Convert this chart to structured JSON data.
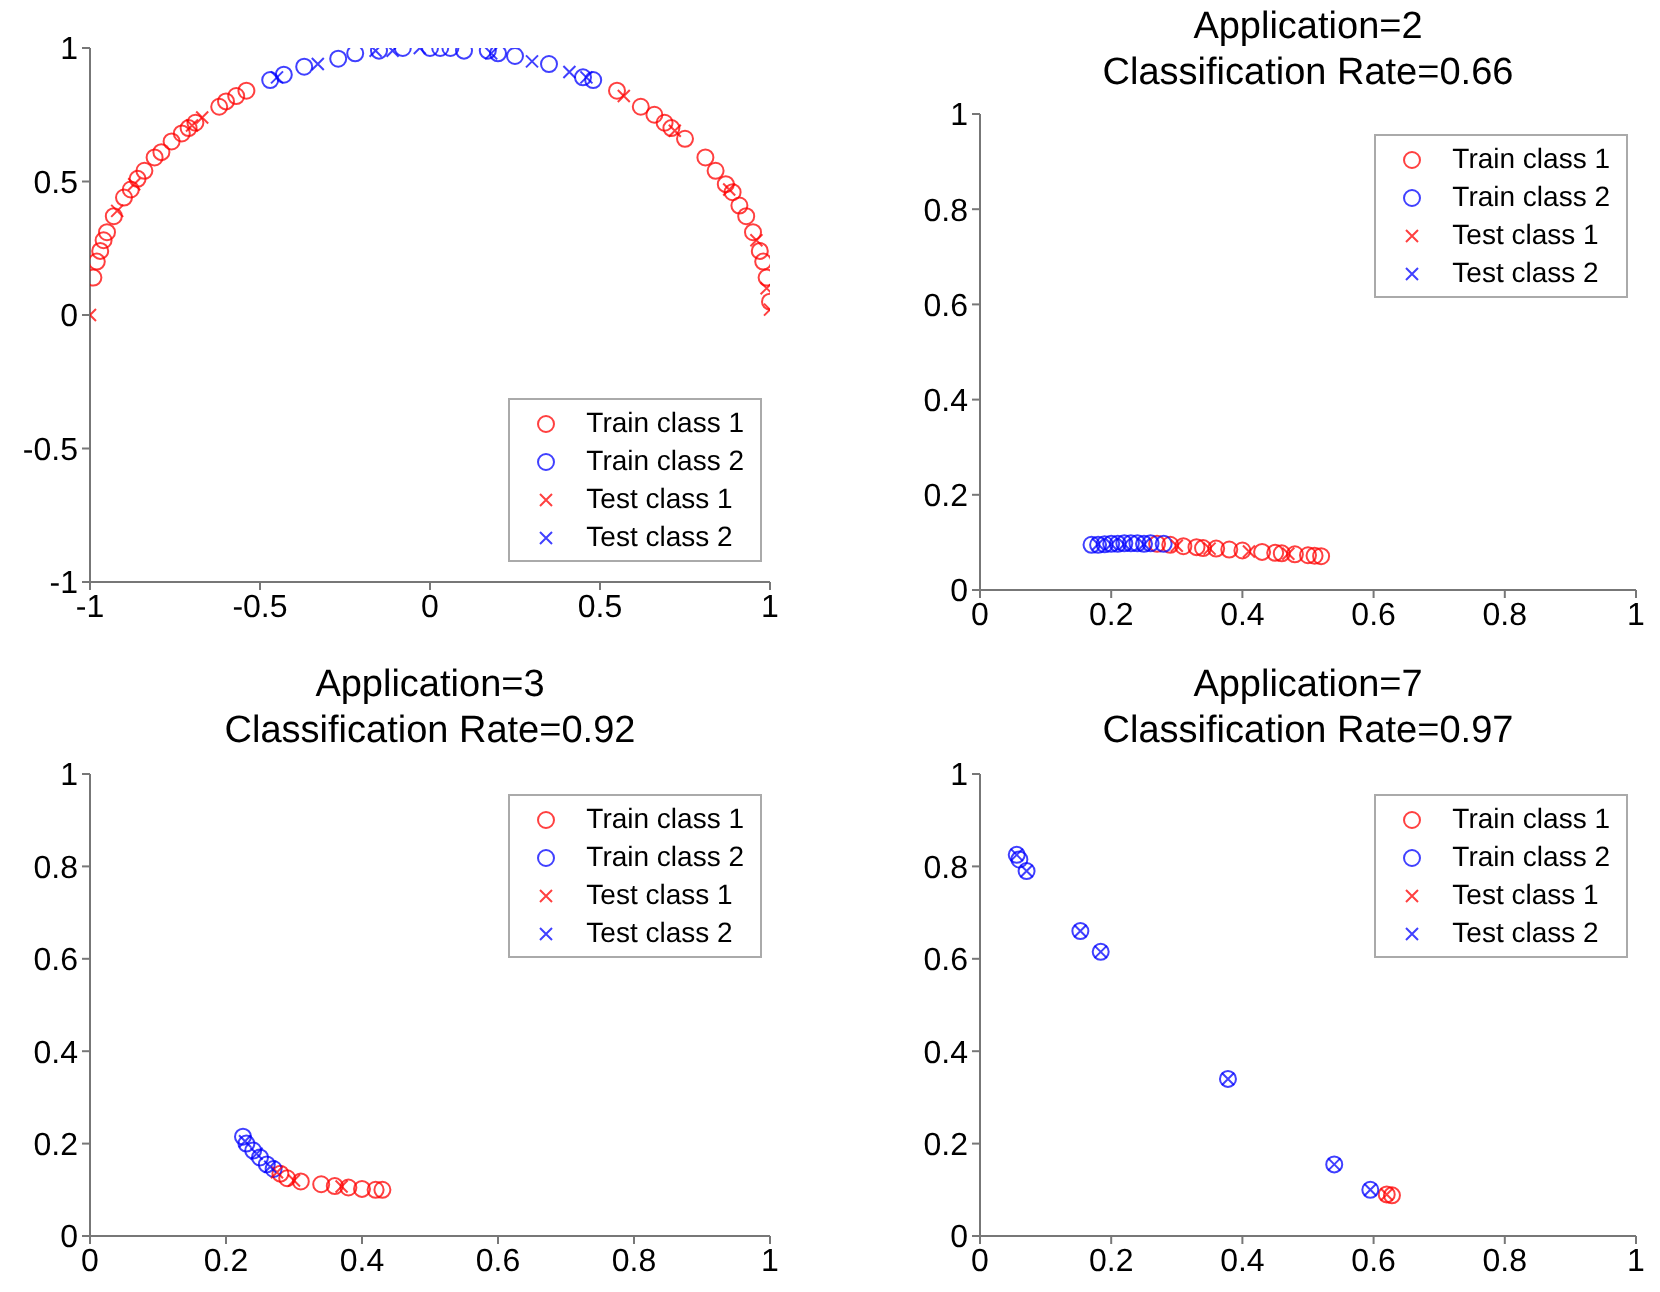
{
  "chart_data": [
    {
      "type": "scatter",
      "legend": "bottom right",
      "xlim": [
        -1,
        1
      ],
      "ylim": [
        -1,
        1
      ],
      "xticks": [
        -1,
        -0.5,
        0,
        0.5,
        1
      ],
      "yticks": [
        -1,
        -0.5,
        0,
        0.5,
        1
      ],
      "grid": false,
      "series": [
        {
          "name": "Train class 1",
          "color": "#ff0000",
          "marker": "circle",
          "x": [
            -0.99,
            -0.98,
            -0.97,
            -0.96,
            -0.95,
            -0.93,
            -0.9,
            -0.88,
            -0.86,
            -0.84,
            -0.81,
            -0.79,
            -0.76,
            -0.73,
            -0.71,
            -0.69,
            -0.62,
            -0.6,
            -0.57,
            -0.54,
            0.55,
            0.62,
            0.66,
            0.69,
            0.71,
            0.75,
            0.81,
            0.84,
            0.87,
            0.89,
            0.91,
            0.93,
            0.95,
            0.97,
            0.98,
            0.99,
            1.0
          ],
          "values": [
            0.14,
            0.2,
            0.24,
            0.28,
            0.31,
            0.37,
            0.44,
            0.47,
            0.51,
            0.54,
            0.59,
            0.61,
            0.65,
            0.68,
            0.7,
            0.72,
            0.78,
            0.8,
            0.82,
            0.84,
            0.84,
            0.78,
            0.75,
            0.72,
            0.7,
            0.66,
            0.59,
            0.54,
            0.49,
            0.46,
            0.41,
            0.37,
            0.31,
            0.24,
            0.2,
            0.14,
            0.05
          ]
        },
        {
          "name": "Train class 2",
          "color": "#0000ff",
          "marker": "circle",
          "x": [
            -0.47,
            -0.43,
            -0.37,
            -0.27,
            -0.22,
            -0.15,
            -0.08,
            0.0,
            0.03,
            0.06,
            0.1,
            0.17,
            0.2,
            0.25,
            0.35,
            0.45,
            0.48
          ],
          "values": [
            0.88,
            0.9,
            0.93,
            0.96,
            0.98,
            0.99,
            1.0,
            1.0,
            1.0,
            1.0,
            0.99,
            0.99,
            0.98,
            0.97,
            0.94,
            0.89,
            0.88
          ]
        },
        {
          "name": "Test class 1",
          "color": "#ff0000",
          "marker": "cross",
          "x": [
            -1.0,
            -0.92,
            -0.87,
            -0.7,
            -0.67,
            0.57,
            0.72,
            0.88,
            0.96,
            0.99,
            1.0
          ],
          "values": [
            0.0,
            0.39,
            0.49,
            0.71,
            0.74,
            0.82,
            0.69,
            0.47,
            0.28,
            0.1,
            0.02
          ]
        },
        {
          "name": "Test class 2",
          "color": "#0000ff",
          "marker": "cross",
          "x": [
            -0.45,
            -0.33,
            -0.16,
            -0.11,
            -0.03,
            0.18,
            0.3,
            0.41,
            0.46
          ],
          "values": [
            0.89,
            0.94,
            0.99,
            0.99,
            1.0,
            0.98,
            0.95,
            0.91,
            0.89
          ]
        }
      ]
    },
    {
      "type": "scatter",
      "title": "Application=2",
      "subtitle": "Classification Rate=0.66",
      "legend": "top right",
      "xlim": [
        0,
        1
      ],
      "ylim": [
        0,
        1
      ],
      "xticks": [
        0,
        0.2,
        0.4,
        0.6,
        0.8,
        1
      ],
      "yticks": [
        0,
        0.2,
        0.4,
        0.6,
        0.8,
        1
      ],
      "grid": false,
      "series": [
        {
          "name": "Train class 1",
          "color": "#ff0000",
          "marker": "circle",
          "x": [
            0.27,
            0.29,
            0.31,
            0.33,
            0.34,
            0.36,
            0.38,
            0.4,
            0.43,
            0.45,
            0.46,
            0.48,
            0.5,
            0.51,
            0.52
          ],
          "values": [
            0.097,
            0.095,
            0.092,
            0.09,
            0.088,
            0.087,
            0.085,
            0.083,
            0.08,
            0.078,
            0.077,
            0.075,
            0.073,
            0.072,
            0.071
          ]
        },
        {
          "name": "Train class 2",
          "color": "#0000ff",
          "marker": "circle",
          "x": [
            0.17,
            0.18,
            0.19,
            0.2,
            0.21,
            0.22,
            0.23,
            0.24,
            0.25,
            0.26,
            0.28
          ],
          "values": [
            0.095,
            0.095,
            0.096,
            0.097,
            0.097,
            0.098,
            0.098,
            0.098,
            0.097,
            0.098,
            0.097
          ]
        },
        {
          "name": "Test class 1",
          "color": "#ff0000",
          "marker": "cross",
          "x": [
            0.3,
            0.35,
            0.41,
            0.47
          ],
          "values": [
            0.093,
            0.087,
            0.081,
            0.076
          ]
        },
        {
          "name": "Test class 2",
          "color": "#0000ff",
          "marker": "cross",
          "x": [
            0.18,
            0.2,
            0.22,
            0.25
          ],
          "values": [
            0.096,
            0.096,
            0.096,
            0.096
          ]
        }
      ]
    },
    {
      "type": "scatter",
      "title": "Application=3",
      "subtitle": "Classification Rate=0.92",
      "legend": "top right",
      "xlim": [
        0,
        1
      ],
      "ylim": [
        0,
        1
      ],
      "xticks": [
        0,
        0.2,
        0.4,
        0.6,
        0.8,
        1
      ],
      "yticks": [
        0,
        0.2,
        0.4,
        0.6,
        0.8,
        1
      ],
      "grid": false,
      "series": [
        {
          "name": "Train class 1",
          "color": "#ff0000",
          "marker": "circle",
          "x": [
            0.28,
            0.29,
            0.31,
            0.34,
            0.36,
            0.38,
            0.4,
            0.42,
            0.43
          ],
          "values": [
            0.135,
            0.125,
            0.118,
            0.112,
            0.108,
            0.105,
            0.102,
            0.1,
            0.1
          ]
        },
        {
          "name": "Train class 2",
          "color": "#0000ff",
          "marker": "circle",
          "x": [
            0.225,
            0.23,
            0.24,
            0.25,
            0.26,
            0.27
          ],
          "values": [
            0.215,
            0.2,
            0.185,
            0.17,
            0.155,
            0.145
          ]
        },
        {
          "name": "Test class 1",
          "color": "#ff0000",
          "marker": "cross",
          "x": [
            0.275,
            0.3,
            0.37
          ],
          "values": [
            0.138,
            0.12,
            0.107
          ]
        },
        {
          "name": "Test class 2",
          "color": "#0000ff",
          "marker": "cross",
          "x": [
            0.228,
            0.245,
            0.265
          ],
          "values": [
            0.205,
            0.178,
            0.15
          ]
        }
      ]
    },
    {
      "type": "scatter",
      "title": "Application=7",
      "subtitle": "Classification Rate=0.97",
      "legend": "top right",
      "xlim": [
        0,
        1
      ],
      "ylim": [
        0,
        1
      ],
      "xticks": [
        0,
        0.2,
        0.4,
        0.6,
        0.8,
        1
      ],
      "yticks": [
        0,
        0.2,
        0.4,
        0.6,
        0.8,
        1
      ],
      "grid": false,
      "series": [
        {
          "name": "Train class 1",
          "color": "#ff0000",
          "marker": "circle",
          "x": [
            0.62,
            0.628
          ],
          "values": [
            0.09,
            0.088
          ]
        },
        {
          "name": "Train class 2",
          "color": "#0000ff",
          "marker": "circle",
          "x": [
            0.056,
            0.06,
            0.071,
            0.153,
            0.184,
            0.378,
            0.54,
            0.595
          ],
          "values": [
            0.825,
            0.815,
            0.79,
            0.66,
            0.615,
            0.34,
            0.155,
            0.1
          ]
        },
        {
          "name": "Test class 1",
          "color": "#ff0000",
          "marker": "cross",
          "x": [
            0.62
          ],
          "values": [
            0.09
          ]
        },
        {
          "name": "Test class 2",
          "color": "#0000ff",
          "marker": "cross",
          "x": [
            0.056,
            0.071,
            0.153,
            0.184,
            0.378,
            0.54,
            0.595
          ],
          "values": [
            0.825,
            0.79,
            0.66,
            0.615,
            0.34,
            0.155,
            0.1
          ]
        }
      ]
    }
  ]
}
